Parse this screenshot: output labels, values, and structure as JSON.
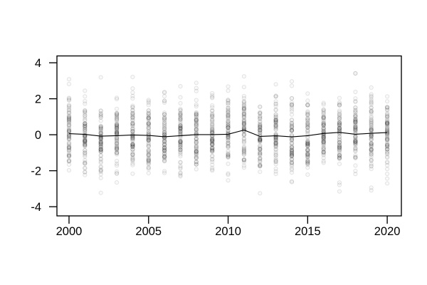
{
  "chart_data": {
    "type": "scatter",
    "subtype": "yearly-strip-plot-with-mean-line",
    "title": "",
    "xlabel": "",
    "ylabel": "",
    "x_ticks": [
      2000,
      2005,
      2010,
      2015,
      2020
    ],
    "x_tick_labels": [
      "2000",
      "2005",
      "2010",
      "2015",
      "2020"
    ],
    "y_ticks": [
      -4,
      -2,
      0,
      2,
      4
    ],
    "y_tick_labels": [
      "-4",
      "-2",
      "0",
      "2",
      "4"
    ],
    "xlim": [
      1999.24,
      2020.89
    ],
    "ylim": [
      -4.51,
      4.38
    ],
    "grid": false,
    "legend": null,
    "box_around_plot": true,
    "years": [
      2000,
      2001,
      2002,
      2003,
      2004,
      2005,
      2006,
      2007,
      2008,
      2009,
      2010,
      2011,
      2012,
      2013,
      2014,
      2015,
      2016,
      2017,
      2018,
      2019,
      2020
    ],
    "series": [
      {
        "name": "yearly-mean-line",
        "type": "line",
        "color": "#000000",
        "values": [
          0.06,
          0.02,
          -0.08,
          -0.05,
          -0.01,
          -0.04,
          -0.11,
          -0.05,
          0.01,
          0.01,
          0.03,
          0.26,
          -0.09,
          -0.06,
          -0.12,
          -0.05,
          0.07,
          0.13,
          0.03,
          0.08,
          0.12
        ]
      }
    ],
    "points": {
      "description": "Each year has a dense vertical column of overlapping translucent gray circles, approximately normally distributed around 0 (sd ~1), mostly within -2.5..2.5 with rare outliers near +/-3.3; no horizontal jitter.",
      "n_per_year": 80,
      "mean_follows_line": true,
      "sd": 1.0,
      "max_abs": 3.5,
      "seed": 7,
      "color": "#000000",
      "fill_opacity": 0.025,
      "stroke_opacity": 0.1
    },
    "styles": {
      "background": "#ffffff",
      "axis_color": "#000000",
      "line_color": "#000000",
      "point_gray_appearance": "#c9c9c9"
    }
  }
}
